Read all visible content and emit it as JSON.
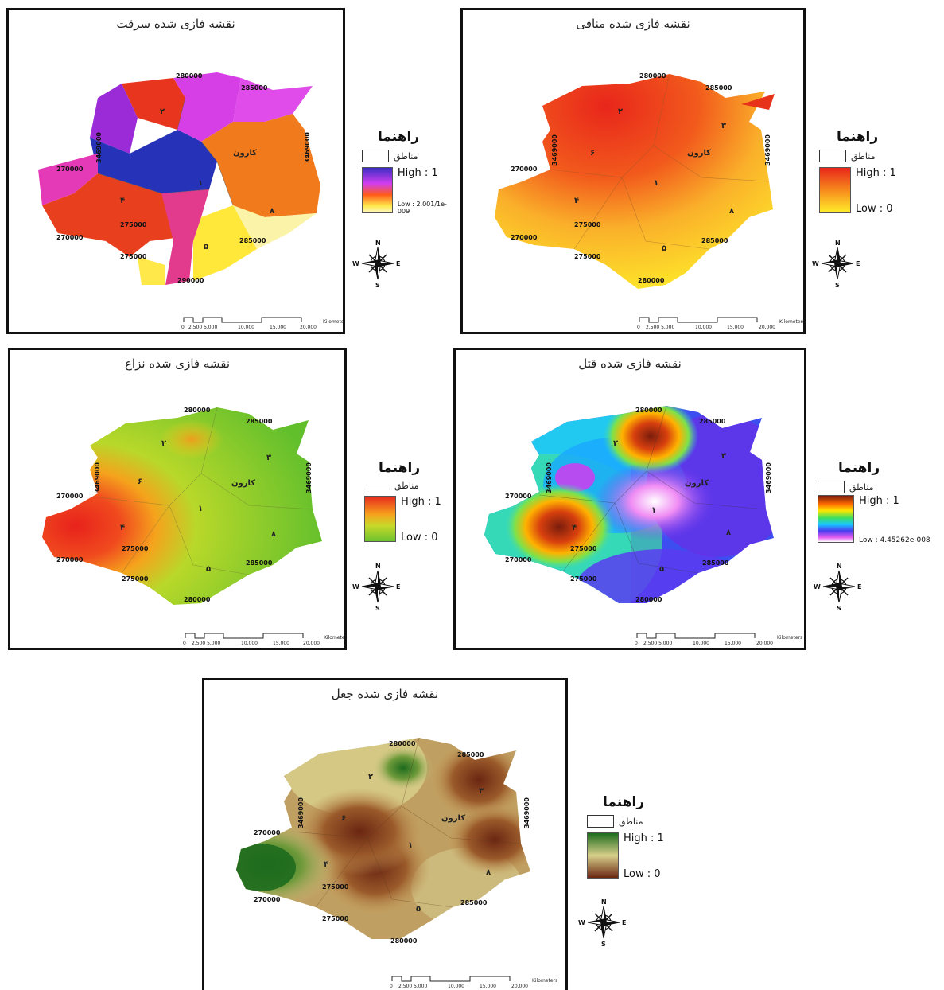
{
  "maps": [
    {
      "title": "نقشه فازی شده سرقت",
      "legend": {
        "title": "راهنما",
        "zones_label": "مناطق",
        "high": "High : 1",
        "low": "Low : 2.001/1e-009"
      },
      "ramp": [
        "#7b2cc4",
        "#d13ef0",
        "#ff7a1a",
        "#ffe84a",
        "#fff8c0"
      ]
    },
    {
      "title": "نقشه فازی شده منافی",
      "legend": {
        "title": "راهنما",
        "zones_label": "مناطق",
        "high": "High : 1",
        "low": "Low : 0"
      },
      "ramp": [
        "#e8261b",
        "#f78a1c",
        "#ffee2a"
      ]
    },
    {
      "title": "نقشه فازی شده نزاع",
      "legend": {
        "title": "راهنما",
        "zones_label": "مناطق",
        "high": "High : 1",
        "low": "Low : 0"
      },
      "ramp": [
        "#e82a1e",
        "#f6a21c",
        "#c8d82a",
        "#6cc22e"
      ]
    },
    {
      "title": "نقشه فازی شده قتل",
      "legend": {
        "title": "راهنما",
        "zones_label": "مناطق",
        "high": "High : 1",
        "low": "Low : 4.45262e-008"
      },
      "ramp": [
        "#7a1d0d",
        "#ff6a00",
        "#ffe600",
        "#3ee05c",
        "#19c8ff",
        "#4a3cf0",
        "#e45cf2",
        "#ffffff"
      ]
    },
    {
      "title": "نقشه فازی شده جعل",
      "legend": {
        "title": "راهنما",
        "zones_label": "مناطق",
        "high": "High : 1",
        "low": "Low : 0"
      },
      "ramp": [
        "#1c6b1c",
        "#d7cf8a",
        "#6b2612"
      ]
    }
  ],
  "map_labels": {
    "karun": "کارون",
    "zones": [
      "۱",
      "۲",
      "۳",
      "۴",
      "۵",
      "۶",
      "۸"
    ],
    "coords": [
      "280000",
      "285000",
      "270000",
      "275000",
      "3469000",
      "290000"
    ]
  },
  "scale_bar": {
    "ticks": [
      "0",
      "2,500 5,000",
      "10,000",
      "15,000",
      "20,000"
    ],
    "unit": "Kilometers"
  },
  "compass": {
    "n": "N",
    "s": "S",
    "e": "E",
    "w": "W"
  }
}
